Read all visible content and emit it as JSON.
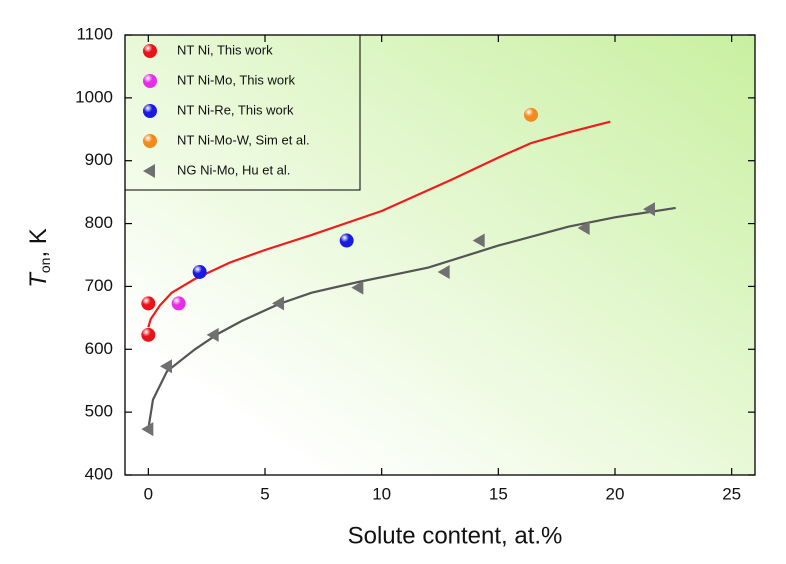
{
  "chart_data": {
    "type": "scatter",
    "x_label": "Solute content, at.%",
    "y_label": "T",
    "y_label_sub": "on",
    "y_label_suffix": ", K",
    "xlim": [
      -1,
      26
    ],
    "ylim": [
      400,
      1100
    ],
    "xticks": [
      0,
      5,
      10,
      15,
      20,
      25
    ],
    "yticks": [
      400,
      500,
      600,
      700,
      800,
      900,
      1000,
      1100
    ],
    "legend": "top-left",
    "series": [
      {
        "name": "NT Ni, This work",
        "color": "#e8141c",
        "marker": "circle",
        "x": [
          0,
          0
        ],
        "values": [
          673,
          623
        ]
      },
      {
        "name": "NT Ni-Mo, This work",
        "color": "#e62ee6",
        "marker": "circle",
        "x": [
          1.3
        ],
        "values": [
          673
        ]
      },
      {
        "name": "NT Ni-Re, This work",
        "color": "#1a1ae0",
        "marker": "circle",
        "x": [
          2.2,
          8.5
        ],
        "values": [
          723,
          773
        ]
      },
      {
        "name": "NT Ni-Mo-W, Sim et al.",
        "color": "#f28a1e",
        "marker": "circle",
        "x": [
          16.4
        ],
        "values": [
          973
        ]
      },
      {
        "name": "NG Ni-Mo, Hu et al.",
        "color": "#707070",
        "marker": "triangle-left",
        "x": [
          0,
          0.8,
          2.8,
          5.6,
          9,
          12.7,
          14.2,
          18.7,
          21.5
        ],
        "values": [
          473,
          573,
          623,
          673,
          698,
          723,
          773,
          793,
          823
        ]
      }
    ],
    "fits": [
      {
        "color": "#f01c1c",
        "x": [
          0,
          0.1,
          0.5,
          1,
          2,
          3.5,
          5,
          7,
          10,
          13,
          15,
          16.4,
          18,
          19.8
        ],
        "values": [
          635,
          648,
          670,
          690,
          712,
          738,
          758,
          782,
          820,
          870,
          905,
          928,
          945,
          962
        ]
      },
      {
        "color": "#555555",
        "x": [
          0,
          0.2,
          0.8,
          2,
          3,
          4,
          5.6,
          7,
          9,
          12,
          15,
          18,
          20,
          22.6
        ],
        "values": [
          473,
          520,
          565,
          600,
          625,
          645,
          672,
          690,
          707,
          730,
          765,
          795,
          810,
          825
        ]
      }
    ]
  }
}
